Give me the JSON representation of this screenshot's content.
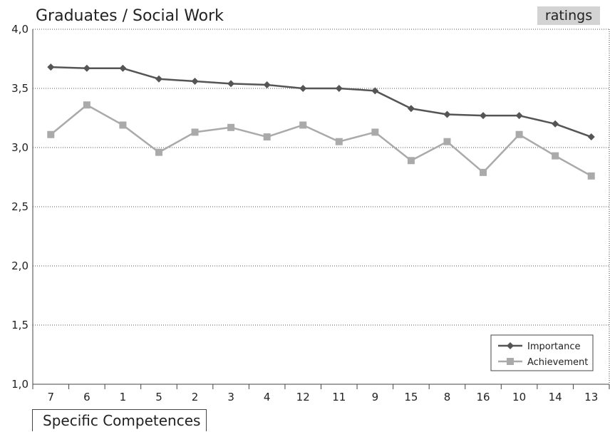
{
  "header": {
    "title": "Graduates / Social Work",
    "badge": "ratings"
  },
  "footer": {
    "axis_title": "Specific Competences"
  },
  "chart_data": {
    "type": "line",
    "title": "Graduates / Social Work",
    "xlabel": "Specific Competences",
    "ylabel": "",
    "categories": [
      "7",
      "6",
      "1",
      "5",
      "2",
      "3",
      "4",
      "12",
      "11",
      "9",
      "15",
      "8",
      "16",
      "10",
      "14",
      "13"
    ],
    "ylim": [
      1.0,
      4.0
    ],
    "yticks": [
      "1,0",
      "1,5",
      "2,0",
      "2,5",
      "3,0",
      "3,5",
      "4,0"
    ],
    "ytick_values": [
      1.0,
      1.5,
      2.0,
      2.5,
      3.0,
      3.5,
      4.0
    ],
    "grid": "horizontal dotted",
    "legend_position": "bottom-right",
    "series": [
      {
        "name": "Importance",
        "marker": "diamond",
        "color": "#555555",
        "values": [
          3.68,
          3.67,
          3.67,
          3.58,
          3.56,
          3.54,
          3.53,
          3.5,
          3.5,
          3.48,
          3.33,
          3.28,
          3.27,
          3.27,
          3.2,
          3.09
        ]
      },
      {
        "name": "Achievement",
        "marker": "square",
        "color": "#aaaaaa",
        "values": [
          3.11,
          3.36,
          3.19,
          2.96,
          3.13,
          3.17,
          3.09,
          3.19,
          3.05,
          3.13,
          2.89,
          3.05,
          2.79,
          3.11,
          2.93,
          2.76
        ]
      }
    ]
  }
}
